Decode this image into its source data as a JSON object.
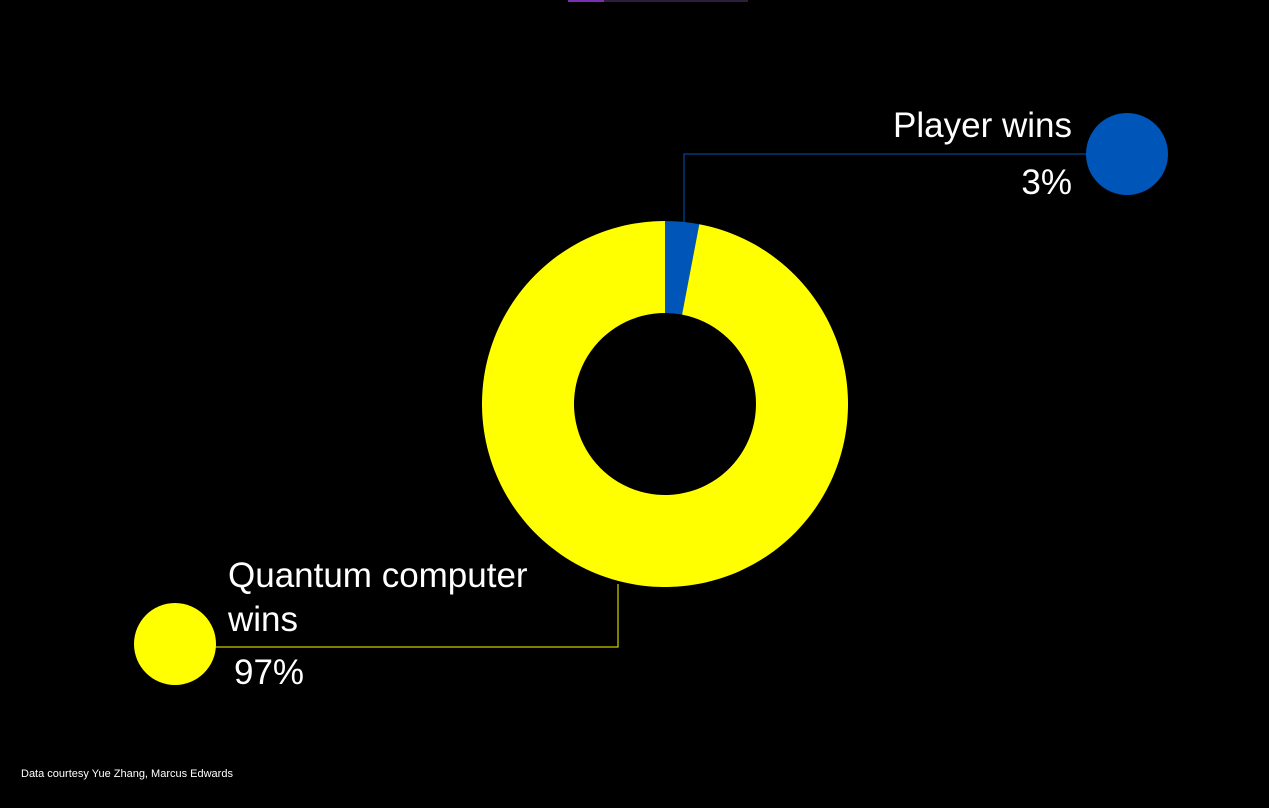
{
  "chart_data": {
    "type": "pie",
    "variant": "donut",
    "categories": [
      "Player wins",
      "Quantum computer wins"
    ],
    "values": [
      3,
      97
    ],
    "value_labels": [
      "3%",
      "97%"
    ],
    "colors": [
      "#0055b8",
      "#ffff00"
    ],
    "title": "",
    "legend": "callouts"
  },
  "labels": {
    "player": "Player wins",
    "player_pct": "3%",
    "quantum": "Quantum computer wins",
    "quantum_pct": "97%"
  },
  "footnote": "Data courtesy Yue Zhang, Marcus Edwards",
  "colors": {
    "background": "#000000",
    "player": "#0055b8",
    "quantum": "#ffff00",
    "text": "#ffffff"
  }
}
